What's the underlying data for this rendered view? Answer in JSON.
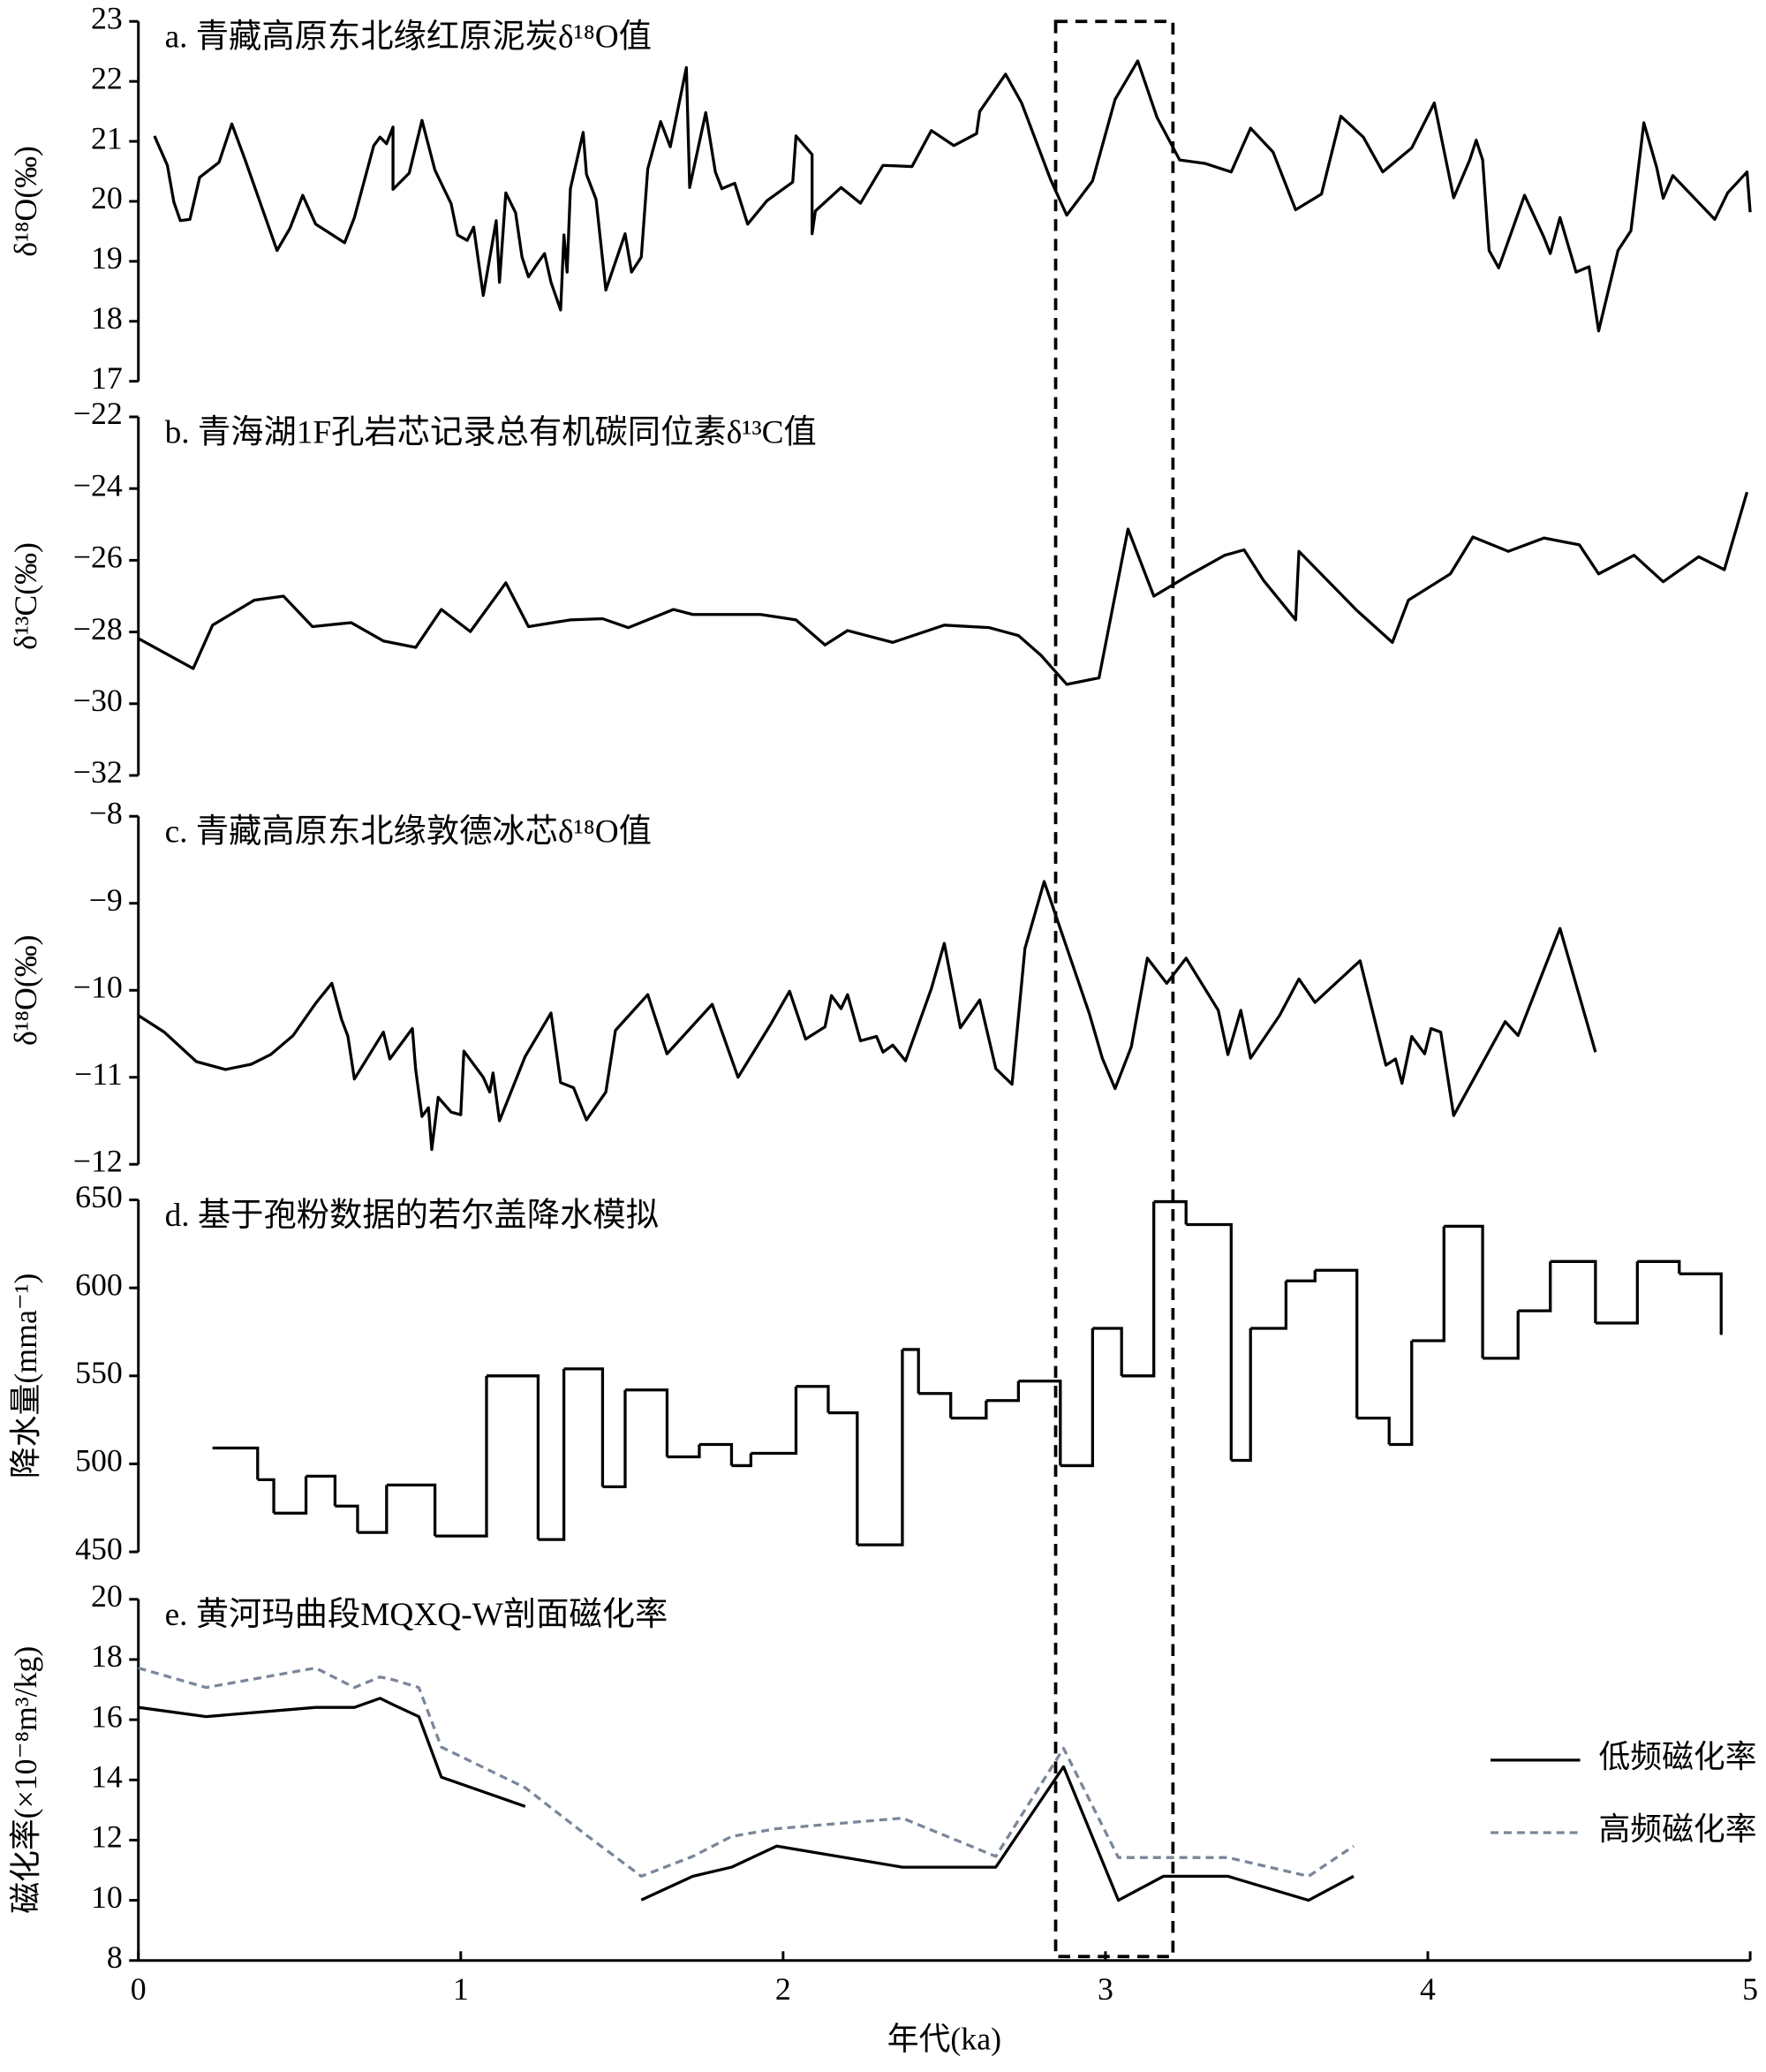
{
  "chart_data": [
    {
      "type": "line",
      "title": "a. 青藏高原东北缘红原泥炭δ¹⁸O值",
      "ylabel": "δ¹⁸O(‰)",
      "xlim": [
        0,
        5
      ],
      "ylim": [
        17,
        23
      ],
      "yticks": [
        17,
        18,
        19,
        20,
        21,
        22,
        23
      ],
      "color": "#000000",
      "x": [
        0.05,
        0.09,
        0.11,
        0.13,
        0.16,
        0.19,
        0.25,
        0.29,
        0.33,
        0.43,
        0.47,
        0.51,
        0.55,
        0.64,
        0.67,
        0.73,
        0.75,
        0.77,
        0.79,
        0.79,
        0.84,
        0.88,
        0.92,
        0.97,
        0.99,
        1.02,
        1.04,
        1.07,
        1.11,
        1.12,
        1.14,
        1.17,
        1.19,
        1.21,
        1.24,
        1.26,
        1.28,
        1.31,
        1.32,
        1.33,
        1.34,
        1.38,
        1.39,
        1.42,
        1.45,
        1.51,
        1.53,
        1.56,
        1.58,
        1.62,
        1.65,
        1.7,
        1.71,
        1.76,
        1.79,
        1.81,
        1.85,
        1.89,
        1.95,
        2.03,
        2.04,
        2.09,
        2.09,
        2.1,
        2.18,
        2.24,
        2.31,
        2.4,
        2.46,
        2.53,
        2.6,
        2.61,
        2.69,
        2.74,
        2.83,
        2.88,
        2.96,
        3.03,
        3.1,
        3.16,
        3.23,
        3.31,
        3.39,
        3.45,
        3.52,
        3.59,
        3.67,
        3.73,
        3.8,
        3.86,
        3.95,
        4.02,
        4.08,
        4.13,
        4.15,
        4.17,
        4.19,
        4.22,
        4.3,
        4.36,
        4.38,
        4.41,
        4.46,
        4.5,
        4.53,
        4.59,
        4.63,
        4.67,
        4.71,
        4.73,
        4.76,
        4.89,
        4.93,
        4.99,
        5.0
      ],
      "values": [
        21.09,
        20.6,
        19.99,
        19.68,
        19.7,
        20.4,
        20.65,
        21.29,
        20.71,
        19.18,
        19.55,
        20.1,
        19.62,
        19.31,
        19.73,
        20.93,
        21.07,
        20.96,
        21.24,
        20.2,
        20.47,
        21.35,
        20.52,
        19.96,
        19.44,
        19.35,
        19.57,
        18.43,
        19.68,
        18.65,
        20.14,
        19.81,
        19.07,
        18.74,
        18.98,
        19.13,
        18.65,
        18.19,
        19.44,
        18.82,
        20.21,
        21.15,
        20.45,
        20.03,
        18.52,
        19.46,
        18.82,
        19.07,
        20.54,
        21.33,
        20.91,
        22.23,
        20.23,
        21.48,
        20.49,
        20.21,
        20.3,
        19.62,
        20.01,
        20.32,
        21.09,
        20.78,
        19.46,
        19.84,
        20.23,
        19.97,
        20.6,
        20.58,
        21.18,
        20.93,
        21.13,
        21.5,
        22.12,
        21.64,
        20.36,
        19.77,
        20.34,
        21.7,
        22.34,
        21.4,
        20.69,
        20.63,
        20.49,
        21.22,
        20.82,
        19.86,
        20.12,
        21.42,
        21.07,
        20.49,
        20.89,
        21.64,
        20.06,
        20.69,
        21.02,
        20.69,
        19.18,
        18.89,
        20.1,
        19.4,
        19.13,
        19.73,
        18.82,
        18.91,
        17.84,
        19.18,
        19.51,
        21.31,
        20.56,
        20.05,
        20.43,
        19.7,
        20.14,
        20.49,
        19.82
      ]
    },
    {
      "type": "line",
      "title": "b. 青海湖1F孔岩芯记录总有机碳同位素δ¹³C值",
      "ylabel": "δ¹³C(‰)",
      "xlim": [
        0,
        5
      ],
      "ylim": [
        -32,
        -22
      ],
      "yticks": [
        {
          "value": -32,
          "label": "−32"
        },
        {
          "value": -30,
          "label": "−30"
        },
        {
          "value": -28,
          "label": "−28"
        },
        {
          "value": -26,
          "label": "−26"
        },
        {
          "value": -24,
          "label": "−24"
        },
        {
          "value": -22,
          "label": "−22"
        }
      ],
      "color": "#000000",
      "x": [
        0,
        0.17,
        0.23,
        0.36,
        0.45,
        0.54,
        0.66,
        0.76,
        0.86,
        0.94,
        1.03,
        1.14,
        1.21,
        1.34,
        1.44,
        1.52,
        1.66,
        1.72,
        1.93,
        2.04,
        2.13,
        2.2,
        2.34,
        2.5,
        2.64,
        2.73,
        2.8,
        2.88,
        2.98,
        3.07,
        3.15,
        3.26,
        3.37,
        3.43,
        3.49,
        3.59,
        3.6,
        3.78,
        3.89,
        3.94,
        4.07,
        4.14,
        4.25,
        4.36,
        4.47,
        4.53,
        4.64,
        4.73,
        4.84,
        4.92,
        4.99
      ],
      "values": [
        -28.18,
        -29.02,
        -27.81,
        -27.11,
        -27.0,
        -27.85,
        -27.74,
        -28.25,
        -28.43,
        -27.37,
        -27.99,
        -26.63,
        -27.85,
        -27.66,
        -27.63,
        -27.88,
        -27.37,
        -27.51,
        -27.51,
        -27.66,
        -28.36,
        -27.96,
        -28.29,
        -27.81,
        -27.88,
        -28.1,
        -28.65,
        -29.46,
        -29.28,
        -25.13,
        -27.0,
        -26.41,
        -25.86,
        -25.71,
        -26.56,
        -27.66,
        -25.75,
        -27.4,
        -28.29,
        -27.11,
        -26.38,
        -25.35,
        -25.75,
        -25.38,
        -25.57,
        -26.38,
        -25.86,
        -26.6,
        -25.9,
        -26.26,
        -24.1
      ]
    },
    {
      "type": "line",
      "title": "c. 青藏高原东北缘敦德冰芯δ¹⁸O值",
      "ylabel": "δ¹⁸O(‰)",
      "xlim": [
        0,
        5
      ],
      "ylim": [
        -12,
        -8
      ],
      "yticks": [
        {
          "value": -12,
          "label": "−12"
        },
        {
          "value": -11,
          "label": "−11"
        },
        {
          "value": -10,
          "label": "−10"
        },
        {
          "value": -9,
          "label": "−9"
        },
        {
          "value": -8,
          "label": "−8"
        }
      ],
      "color": "#000000",
      "x": [
        0,
        0.08,
        0.18,
        0.27,
        0.35,
        0.41,
        0.48,
        0.55,
        0.6,
        0.63,
        0.65,
        0.67,
        0.76,
        0.78,
        0.85,
        0.86,
        0.88,
        0.9,
        0.91,
        0.93,
        0.97,
        1.0,
        1.01,
        1.07,
        1.09,
        1.1,
        1.12,
        1.2,
        1.28,
        1.31,
        1.35,
        1.39,
        1.45,
        1.48,
        1.58,
        1.64,
        1.78,
        1.86,
        1.96,
        2.02,
        2.07,
        2.13,
        2.15,
        2.18,
        2.2,
        2.24,
        2.29,
        2.31,
        2.34,
        2.38,
        2.46,
        2.5,
        2.55,
        2.61,
        2.66,
        2.71,
        2.75,
        2.81,
        2.95,
        2.99,
        3.03,
        3.08,
        3.13,
        3.19,
        3.25,
        3.35,
        3.38,
        3.42,
        3.45,
        3.54,
        3.6,
        3.65,
        3.79,
        3.87,
        3.9,
        3.92,
        3.95,
        3.99,
        4.01,
        4.04,
        4.08,
        4.24,
        4.28,
        4.41,
        4.52
      ],
      "values": [
        -10.29,
        -10.48,
        -10.82,
        -10.91,
        -10.85,
        -10.74,
        -10.52,
        -10.15,
        -9.92,
        -10.33,
        -10.53,
        -11.02,
        -10.48,
        -10.79,
        -10.44,
        -10.91,
        -11.45,
        -11.35,
        -11.83,
        -11.23,
        -11.4,
        -11.43,
        -10.7,
        -11.0,
        -11.17,
        -10.95,
        -11.5,
        -10.76,
        -10.26,
        -11.06,
        -11.12,
        -11.49,
        -11.17,
        -10.46,
        -10.05,
        -10.73,
        -10.16,
        -11.0,
        -10.4,
        -10.01,
        -10.56,
        -10.42,
        -10.06,
        -10.21,
        -10.05,
        -10.58,
        -10.53,
        -10.71,
        -10.63,
        -10.81,
        -9.98,
        -9.46,
        -10.43,
        -10.11,
        -10.9,
        -11.08,
        -9.52,
        -8.75,
        -10.27,
        -10.78,
        -11.13,
        -10.65,
        -9.63,
        -9.92,
        -9.63,
        -10.23,
        -10.74,
        -10.23,
        -10.78,
        -10.29,
        -9.87,
        -10.14,
        -9.66,
        -10.86,
        -10.79,
        -11.07,
        -10.53,
        -10.73,
        -10.44,
        -10.48,
        -11.44,
        -10.36,
        -10.52,
        -9.29,
        -10.71
      ]
    },
    {
      "type": "step",
      "title": "d. 基于孢粉数据的若尔盖降水模拟",
      "ylabel": "降水量(mma⁻¹)",
      "xlim": [
        0,
        5
      ],
      "ylim": [
        450,
        650
      ],
      "yticks": [
        450,
        500,
        550,
        600,
        650
      ],
      "color": "#000000",
      "x": [
        0.23,
        0.37,
        0.42,
        0.52,
        0.61,
        0.68,
        0.77,
        0.92,
        1.08,
        1.24,
        1.32,
        1.44,
        1.51,
        1.64,
        1.74,
        1.84,
        1.9,
        2.04,
        2.14,
        2.23,
        2.37,
        2.42,
        2.52,
        2.63,
        2.73,
        2.86,
        2.96,
        3.05,
        3.15,
        3.25,
        3.39,
        3.45,
        3.56,
        3.65,
        3.78,
        3.88,
        3.95,
        4.05,
        4.17,
        4.28,
        4.38,
        4.52,
        4.65,
        4.78,
        4.91
      ],
      "values": [
        509,
        491,
        472,
        493,
        476,
        461,
        488,
        459,
        550,
        457,
        554,
        487,
        542,
        504,
        511,
        499,
        506,
        544,
        529,
        454,
        565,
        540,
        526,
        536,
        547,
        499,
        577,
        550,
        649,
        636,
        502,
        577,
        604,
        610,
        526,
        511,
        570,
        635,
        560,
        587,
        615,
        580,
        615,
        608,
        574
      ]
    },
    {
      "type": "line",
      "title": "e. 黄河玛曲段MQXQ-W剖面磁化率",
      "ylabel": "磁化率(×10⁻⁸m³/kg)",
      "xlabel": "年代(ka)",
      "xlim": [
        0,
        5
      ],
      "xticks": [
        0,
        1,
        2,
        3,
        4,
        5
      ],
      "ylim": [
        8,
        20
      ],
      "yticks": [
        8,
        10,
        12,
        14,
        16,
        18,
        20
      ],
      "legend": "right",
      "x": [
        0,
        0.21,
        0.55,
        0.67,
        0.75,
        0.79,
        0.87,
        0.94,
        1.2,
        1.39,
        1.56,
        1.72,
        1.84,
        1.98,
        2.37,
        2.66,
        2.87,
        3.04,
        3.18,
        3.38,
        3.63,
        3.77
      ],
      "series": [
        {
          "name": "低频磁化率",
          "color": "#000000",
          "dash": false,
          "values": [
            16.41,
            16.1,
            16.41,
            16.41,
            16.71,
            16.5,
            16.1,
            14.09,
            13.12,
            null,
            10.01,
            10.8,
            11.1,
            11.8,
            11.1,
            11.1,
            14.44,
            10.0,
            10.8,
            10.8,
            10.0,
            10.8
          ]
        },
        {
          "name": "高频磁化率",
          "color": "#7a8699",
          "dash": true,
          "values": [
            17.72,
            17.07,
            17.72,
            17.07,
            17.42,
            17.33,
            17.07,
            15.09,
            13.74,
            12.16,
            10.8,
            11.46,
            12.12,
            12.38,
            12.73,
            11.46,
            15.05,
            11.42,
            11.42,
            11.42,
            10.8,
            11.8
          ]
        }
      ]
    }
  ]
}
